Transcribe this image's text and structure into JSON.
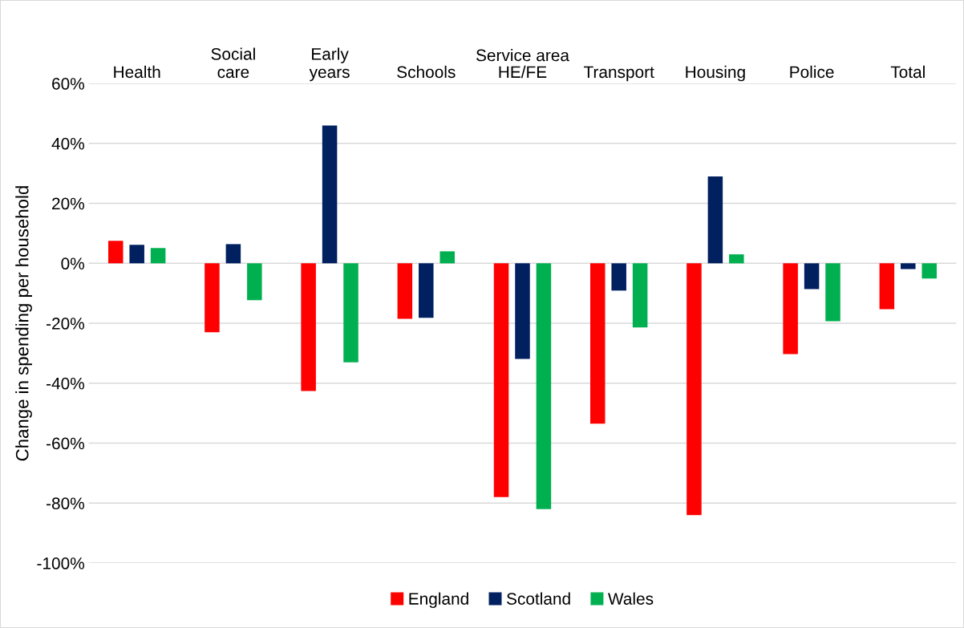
{
  "chart_data": {
    "type": "bar",
    "xlabel": "Service area",
    "ylabel": "Change in spending per household",
    "categories": [
      "Health",
      "Social\ncare",
      "Early\nyears",
      "Schools",
      "HE/FE",
      "Transport",
      "Housing",
      "Police",
      "Total"
    ],
    "series": [
      {
        "name": "England",
        "color": "#ff0000",
        "values": [
          7.5,
          -23,
          -42.6,
          -18.5,
          -78,
          -53.5,
          -84,
          -30.3,
          -15.3
        ]
      },
      {
        "name": "Scotland",
        "color": "#002060",
        "values": [
          6.2,
          6.4,
          46,
          -18.2,
          -31.9,
          -9.1,
          29,
          -8.6,
          -1.9
        ]
      },
      {
        "name": "Wales",
        "color": "#00b050",
        "values": [
          5.1,
          -12.3,
          -33,
          4,
          -82,
          -21.4,
          3,
          -19.3,
          -5.1
        ]
      }
    ],
    "ylim": [
      -100,
      60
    ],
    "yticks": [
      {
        "value": -100,
        "label": "-100%"
      },
      {
        "value": -80,
        "label": "-80%"
      },
      {
        "value": -60,
        "label": "-60%"
      },
      {
        "value": -40,
        "label": "-40%"
      },
      {
        "value": -20,
        "label": "-20%"
      },
      {
        "value": 0,
        "label": "0%"
      },
      {
        "value": 20,
        "label": "20%"
      },
      {
        "value": 40,
        "label": "40%"
      },
      {
        "value": 60,
        "label": "60%"
      }
    ],
    "grid": "y",
    "legend": "bottom"
  }
}
